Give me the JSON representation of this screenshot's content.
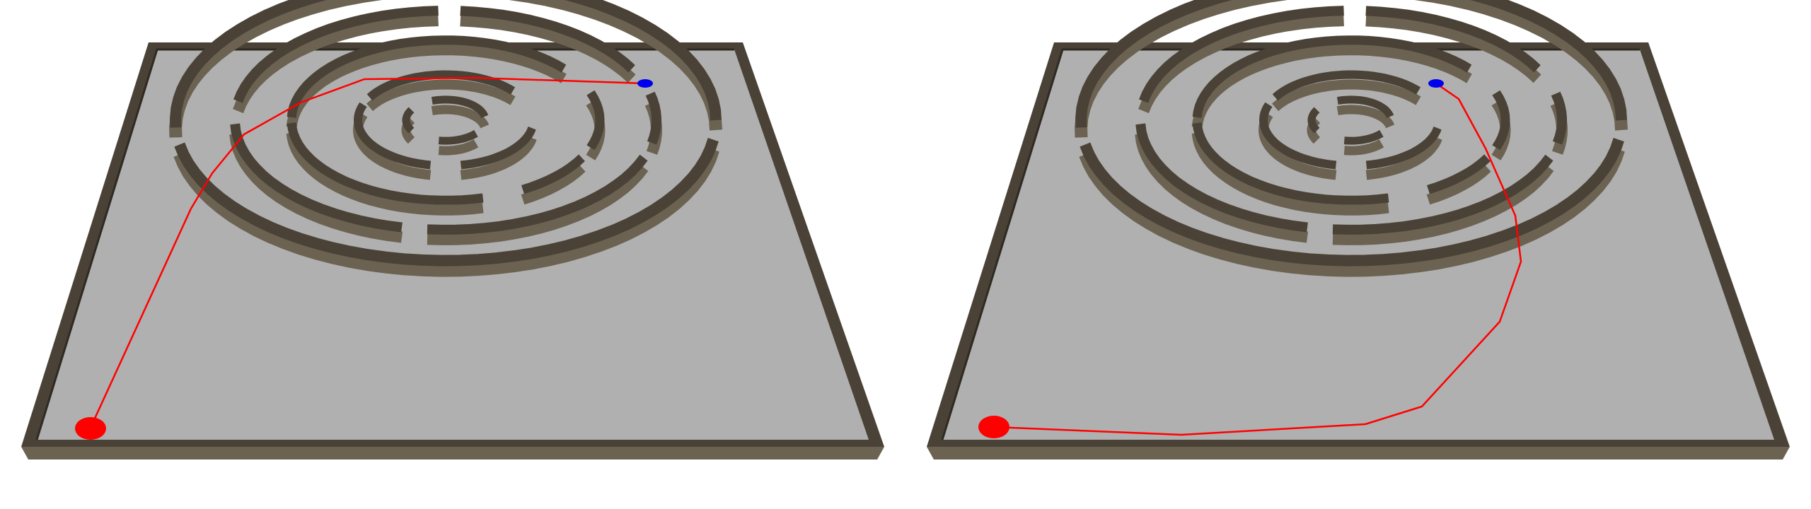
{
  "scene": {
    "panels": [
      {
        "id": "left",
        "path_route": "west-then-north",
        "start_marker_color": "#ff0000",
        "goal_marker_color": "#0000ee",
        "path_color": "#ff0000"
      },
      {
        "id": "right",
        "path_route": "south-then-east",
        "start_marker_color": "#ff0000",
        "goal_marker_color": "#0000ee",
        "path_color": "#ff0000"
      }
    ],
    "colors": {
      "background": "#ffffff",
      "floor": "#b0b0b0",
      "wall_top": "#4a4236",
      "wall_side": "#6b6252",
      "wall_dark": "#2f2a22"
    }
  }
}
